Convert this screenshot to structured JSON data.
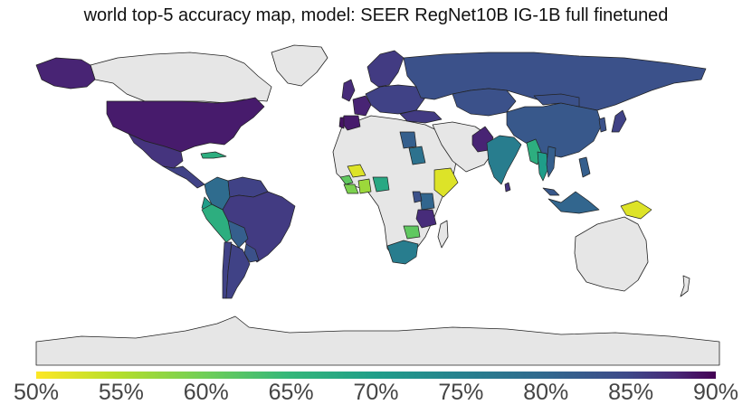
{
  "title": "world top-5 accuracy map, model: SEER RegNet10B IG-1B full finetuned",
  "colorbar": {
    "ticks": [
      "50%",
      "55%",
      "60%",
      "65%",
      "70%",
      "75%",
      "80%",
      "85%",
      "90%"
    ],
    "range": [
      50,
      90
    ],
    "colors": [
      "#fde725",
      "#b5de2b",
      "#6ece58",
      "#35b779",
      "#1f9e89",
      "#26828e",
      "#31688e",
      "#3e4989",
      "#482878",
      "#440154"
    ]
  },
  "no_data_color": "#e6e6e6",
  "map_data": {
    "type": "choropleth",
    "metric": "top-5 accuracy",
    "regions": [
      {
        "name": "USA",
        "value": 87
      },
      {
        "name": "Alaska",
        "value": 86
      },
      {
        "name": "Mexico",
        "value": 84
      },
      {
        "name": "Central America",
        "value": 82
      },
      {
        "name": "Caribbean",
        "value": 65
      },
      {
        "name": "Colombia",
        "value": 76
      },
      {
        "name": "Venezuela",
        "value": 82
      },
      {
        "name": "Ecuador",
        "value": 68
      },
      {
        "name": "Peru",
        "value": 65
      },
      {
        "name": "Brazil",
        "value": 83
      },
      {
        "name": "Bolivia",
        "value": 78
      },
      {
        "name": "Paraguay",
        "value": 80
      },
      {
        "name": "Chile",
        "value": 82
      },
      {
        "name": "Argentina",
        "value": 82
      },
      {
        "name": "UK",
        "value": 85
      },
      {
        "name": "France",
        "value": 86
      },
      {
        "name": "Spain",
        "value": 87
      },
      {
        "name": "Portugal",
        "value": 88
      },
      {
        "name": "Scandinavia",
        "value": 83
      },
      {
        "name": "Europe",
        "value": 82
      },
      {
        "name": "Russia",
        "value": 80
      },
      {
        "name": "Turkey",
        "value": 83
      },
      {
        "name": "Egypt",
        "value": 78
      },
      {
        "name": "Kazakhstan",
        "value": 80
      },
      {
        "name": "China",
        "value": 79
      },
      {
        "name": "Mongolia",
        "value": 80
      },
      {
        "name": "Japan",
        "value": 82
      },
      {
        "name": "Korea",
        "value": 80
      },
      {
        "name": "Pakistan",
        "value": 86
      },
      {
        "name": "India",
        "value": 73
      },
      {
        "name": "Sri Lanka",
        "value": 84
      },
      {
        "name": "Myanmar",
        "value": 65
      },
      {
        "name": "Thailand",
        "value": 68
      },
      {
        "name": "Vietnam",
        "value": 78
      },
      {
        "name": "Malaysia",
        "value": 79
      },
      {
        "name": "Indonesia",
        "value": 77
      },
      {
        "name": "Philippines",
        "value": 78
      },
      {
        "name": "Papua New Guinea",
        "value": 52
      },
      {
        "name": "Senegal",
        "value": 60
      },
      {
        "name": "Guinea",
        "value": 58
      },
      {
        "name": "Ghana",
        "value": 56
      },
      {
        "name": "Nigeria",
        "value": 66
      },
      {
        "name": "Mali",
        "value": 52
      },
      {
        "name": "Sudan",
        "value": 75
      },
      {
        "name": "Ethiopia",
        "value": 52
      },
      {
        "name": "Kenya",
        "value": 77
      },
      {
        "name": "Uganda",
        "value": 80
      },
      {
        "name": "Tanzania",
        "value": 85
      },
      {
        "name": "Zambia",
        "value": 60
      },
      {
        "name": "South Africa",
        "value": 73
      }
    ]
  }
}
